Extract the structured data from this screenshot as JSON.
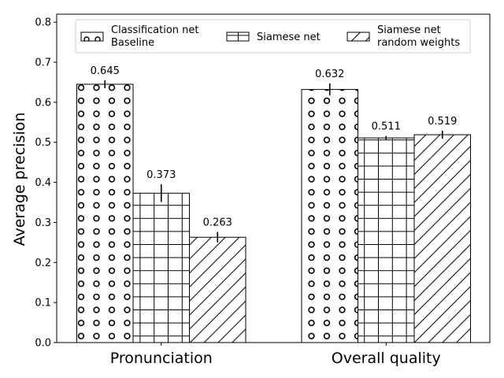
{
  "chart_data": {
    "type": "bar",
    "title": "",
    "xlabel": "",
    "ylabel": "Average precision",
    "ylim": [
      0,
      0.82
    ],
    "yticks": [
      0.0,
      0.1,
      0.2,
      0.3,
      0.4,
      0.5,
      0.6,
      0.7,
      0.8
    ],
    "ytick_labels": [
      "0.0",
      "0.1",
      "0.2",
      "0.3",
      "0.4",
      "0.5",
      "0.6",
      "0.7",
      "0.8"
    ],
    "categories": [
      "Pronunciation",
      "Overall quality"
    ],
    "grid": false,
    "legend_position": "top",
    "series": [
      {
        "name": "Classification net\nBaseline",
        "pattern": "circles",
        "values": [
          0.645,
          0.632
        ],
        "errors": [
          0.01,
          0.015
        ],
        "value_labels": [
          "0.645",
          "0.632"
        ]
      },
      {
        "name": "Siamese net",
        "pattern": "grid",
        "values": [
          0.373,
          0.511
        ],
        "errors": [
          0.022,
          0.005
        ],
        "value_labels": [
          "0.373",
          "0.511"
        ]
      },
      {
        "name": "Siamese net\nrandom weights",
        "pattern": "diagonal",
        "values": [
          0.263,
          0.519
        ],
        "errors": [
          0.013,
          0.01
        ],
        "value_labels": [
          "0.263",
          "0.519"
        ]
      }
    ]
  }
}
